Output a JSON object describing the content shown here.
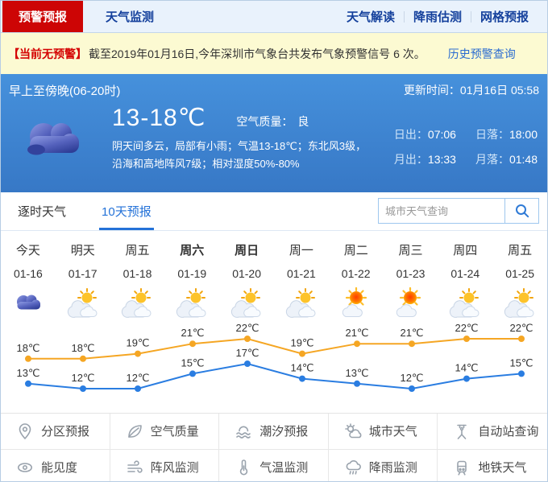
{
  "top_nav": {
    "tabs": [
      {
        "label": "预警预报",
        "active": true
      },
      {
        "label": "天气监测",
        "active": false
      }
    ],
    "links": [
      {
        "label": "天气解读"
      },
      {
        "label": "降雨估测"
      },
      {
        "label": "网格预报"
      }
    ]
  },
  "alert_bar": {
    "prefix": "【当前无预警】",
    "text": "截至2019年01月16日,今年深圳市气象台共发布气象预警信号 6 次。",
    "link": "历史预警查询"
  },
  "current": {
    "period": "早上至傍晚(06-20时)",
    "update_label": "更新时间：",
    "update_time": "01月16日 05:58",
    "temp_range": "13-18℃",
    "air_quality_label": "空气质量：",
    "air_quality": "良",
    "weather_icon": "dark-cloud",
    "description": "阴天间多云，局部有小雨；气温13-18℃；东北风3级，沿海和高地阵风7级；相对湿度50%-80%",
    "sun_moon": [
      {
        "label": "日出：",
        "value": "07:06"
      },
      {
        "label": "日落：",
        "value": "18:00"
      },
      {
        "label": "月出：",
        "value": "13:33"
      },
      {
        "label": "月落：",
        "value": "01:48"
      }
    ]
  },
  "forecast": {
    "tabs": [
      {
        "label": "逐时天气",
        "active": false
      },
      {
        "label": "10天预报",
        "active": true
      }
    ],
    "search_placeholder": "城市天气查询",
    "days": [
      {
        "name": "今天",
        "date": "01-16",
        "icon": "cloudy",
        "bold": false
      },
      {
        "name": "明天",
        "date": "01-17",
        "icon": "partly",
        "bold": false
      },
      {
        "name": "周五",
        "date": "01-18",
        "icon": "partly",
        "bold": false
      },
      {
        "name": "周六",
        "date": "01-19",
        "icon": "partly",
        "bold": true
      },
      {
        "name": "周日",
        "date": "01-20",
        "icon": "partly",
        "bold": true
      },
      {
        "name": "周一",
        "date": "01-21",
        "icon": "partly",
        "bold": false
      },
      {
        "name": "周二",
        "date": "01-22",
        "icon": "sunny",
        "bold": false
      },
      {
        "name": "周三",
        "date": "01-23",
        "icon": "sunny",
        "bold": false
      },
      {
        "name": "周四",
        "date": "01-24",
        "icon": "partly",
        "bold": false
      },
      {
        "name": "周五",
        "date": "01-25",
        "icon": "partly",
        "bold": false
      }
    ]
  },
  "chart_data": {
    "type": "line",
    "categories": [
      "01-16",
      "01-17",
      "01-18",
      "01-19",
      "01-20",
      "01-21",
      "01-22",
      "01-23",
      "01-24",
      "01-25"
    ],
    "series": [
      {
        "name": "high",
        "color": "#f5a623",
        "values": [
          18,
          18,
          19,
          21,
          22,
          19,
          21,
          21,
          22,
          22
        ]
      },
      {
        "name": "low",
        "color": "#2a7de1",
        "values": [
          13,
          12,
          12,
          15,
          17,
          14,
          13,
          12,
          14,
          15
        ]
      }
    ],
    "unit": "℃",
    "ylim": [
      11,
      23
    ],
    "grid": false,
    "legend": "none",
    "point_labels": true,
    "label_color": "#333333"
  },
  "quick_links": [
    {
      "label": "分区预报",
      "icon": "location-pin"
    },
    {
      "label": "空气质量",
      "icon": "leaf"
    },
    {
      "label": "潮汐预报",
      "icon": "wave"
    },
    {
      "label": "城市天气",
      "icon": "sun-cloud"
    },
    {
      "label": "自动站查询",
      "icon": "station"
    },
    {
      "label": "能见度",
      "icon": "eye"
    },
    {
      "label": "阵风监测",
      "icon": "wind"
    },
    {
      "label": "气温监测",
      "icon": "thermometer"
    },
    {
      "label": "降雨监测",
      "icon": "rain"
    },
    {
      "label": "地铁天气",
      "icon": "train"
    }
  ]
}
